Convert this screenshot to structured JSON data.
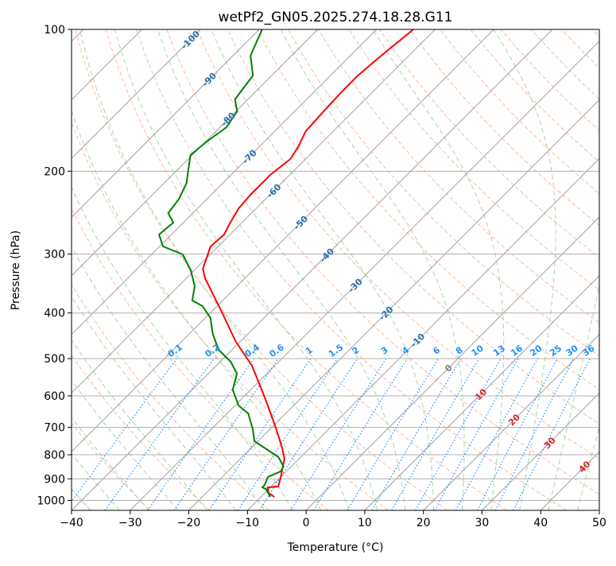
{
  "chart_data": {
    "type": "line",
    "subtype": "skew-t log-p",
    "title": "wetPf2_GN05.2025.274.18.28.G11",
    "xlabel": "Temperature (°C)",
    "ylabel": "Pressure (hPa)",
    "xlim": [
      -40,
      50
    ],
    "ylim": [
      1050,
      100
    ],
    "x_ticks": [
      -40,
      -30,
      -20,
      -10,
      0,
      10,
      20,
      30,
      40,
      50
    ],
    "y_ticks": [
      100,
      200,
      300,
      400,
      500,
      600,
      700,
      800,
      900,
      1000
    ],
    "grid": true,
    "colors": {
      "temperature": "#ff0000",
      "dewpoint": "#008000",
      "isotherm": "#999999",
      "dry_adiabat": "#f4a582",
      "moist_adiabat": "#9fd29f",
      "mixing_ratio": "#1e90ff",
      "label_neg": "#2a6fb0",
      "label_zero": "#808080",
      "label_pos": "#d62728"
    },
    "series": [
      {
        "name": "Temperature",
        "color": "#ff0000",
        "pressure": [
          983.1,
          964.1,
          938.3,
          934.6,
          891.9,
          858.0,
          815.6,
          772.6,
          706.6,
          671.5,
          604.7,
          517.6,
          460.7,
          394.3,
          337.6,
          322.2,
          288.9,
          272.6,
          257.2,
          239.8,
          224.4,
          203.6,
          188.4,
          177.8,
          164.5,
          146.4,
          135.4,
          125.3,
          113.7,
          100
        ],
        "temperature": [
          -7.7,
          -9.4,
          -10.5,
          -8.8,
          -10.0,
          -11.1,
          -12.5,
          -14.8,
          -18.9,
          -21.3,
          -26.3,
          -33.9,
          -40.7,
          -48.7,
          -56.8,
          -58.8,
          -61.3,
          -61.0,
          -62.0,
          -63.0,
          -63.3,
          -63.3,
          -62.6,
          -63.3,
          -64.7,
          -65.1,
          -65.3,
          -65.3,
          -64.7,
          -63.7
        ]
      },
      {
        "name": "Dewpoint",
        "color": "#008000",
        "pressure": [
          983.1,
          945.6,
          938.3,
          927.6,
          891.9,
          868.1,
          848.0,
          809.4,
          778.5,
          748.9,
          706.6,
          653.7,
          628.8,
          581.9,
          538.2,
          507.7,
          478.9,
          443.2,
          410.1,
          386.7,
          376.3,
          351.0,
          324.7,
          300.4,
          288.9,
          272.6,
          257.2,
          245.5,
          228.8,
          211.8,
          199.7,
          184.8,
          173.0,
          161.3,
          149.2,
          140.8,
          125.3,
          113.7,
          100
        ],
        "temperature": [
          -8.4,
          -10.5,
          -11.4,
          -11.4,
          -12.2,
          -11.0,
          -11.3,
          -13.8,
          -17.2,
          -20.6,
          -22.9,
          -26.4,
          -29.4,
          -33.1,
          -35.1,
          -38.2,
          -42.3,
          -46.0,
          -49.1,
          -52.5,
          -55.2,
          -57.2,
          -60.6,
          -64.7,
          -69.4,
          -72.1,
          -71.7,
          -74.2,
          -74.8,
          -76.2,
          -78.0,
          -80.3,
          -79.8,
          -78.9,
          -79.8,
          -82.2,
          -83.2,
          -87.0,
          -89.5
        ]
      }
    ],
    "isotherm_labels": [
      "-100",
      "-90",
      "-80",
      "-70",
      "-60",
      "-50",
      "-40",
      "-30",
      "-20",
      "-10",
      "0",
      "10",
      "20",
      "30",
      "40"
    ],
    "isotherm_label_values": [
      -100,
      -90,
      -80,
      -70,
      -60,
      -50,
      -40,
      -30,
      -20,
      -10,
      0,
      10,
      20,
      30,
      40
    ],
    "mixing_ratio_labels": [
      "0.1",
      "0.2",
      "0.4",
      "0.6",
      "1",
      "1.5",
      "2",
      "3",
      "4",
      "6",
      "8",
      "10",
      "13",
      "16",
      "20",
      "25",
      "30",
      "36"
    ],
    "mixing_ratio_values": [
      0.1,
      0.2,
      0.4,
      0.6,
      1,
      1.5,
      2,
      3,
      4,
      6,
      8,
      10,
      13,
      16,
      20,
      25,
      30,
      36
    ]
  }
}
